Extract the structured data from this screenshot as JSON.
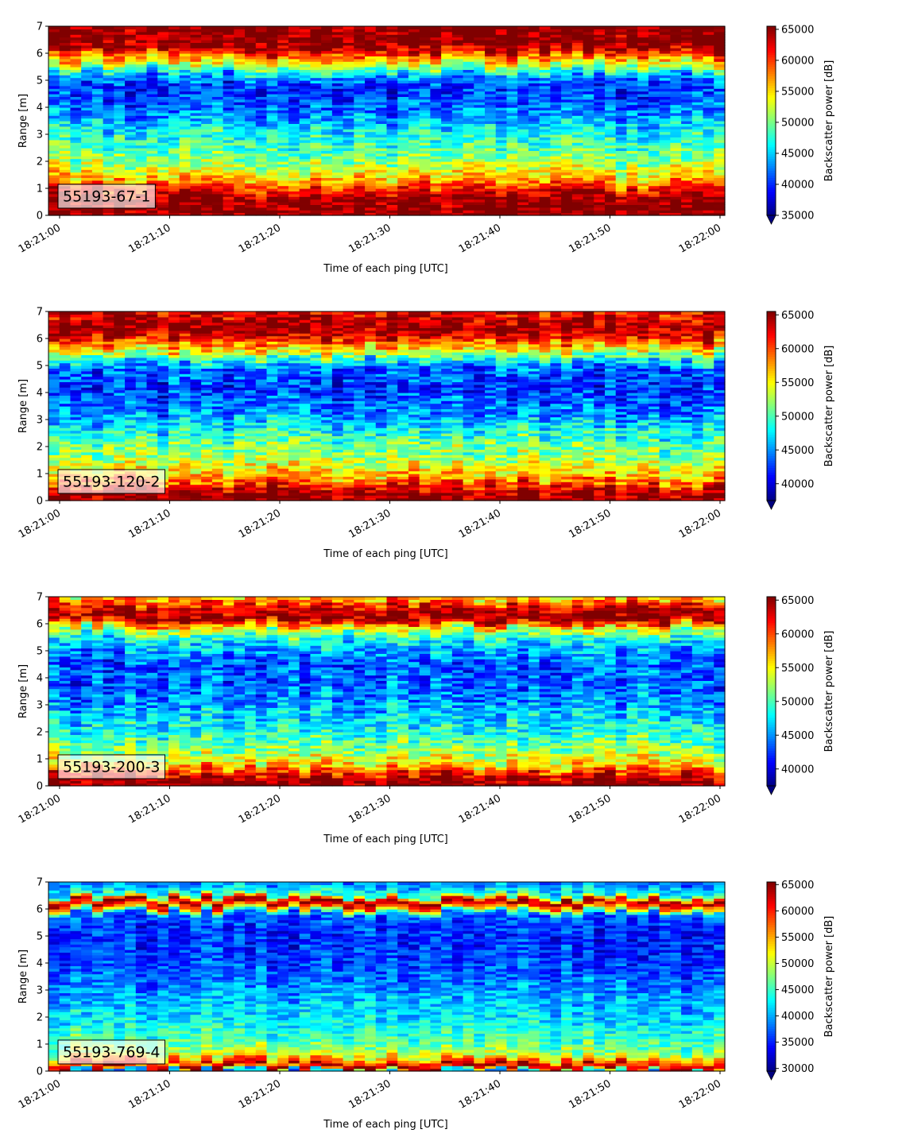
{
  "chart_data": [
    {
      "type": "heatmap",
      "label": "55193-67-1",
      "xlabel": "Time of each ping [UTC]",
      "ylabel": "Range [m]",
      "x_range": [
        "18:21:00",
        "18:22:00"
      ],
      "xticks": [
        "18:21:00",
        "18:21:10",
        "18:21:20",
        "18:21:30",
        "18:21:40",
        "18:21:50",
        "18:22:00"
      ],
      "ylim": [
        0,
        7
      ],
      "yticks": [
        "0",
        "1",
        "2",
        "3",
        "4",
        "5",
        "6",
        "7"
      ],
      "colorbar": {
        "label": "Backscatter power [dB]",
        "colormap": "jet",
        "range": [
          35000,
          65500
        ],
        "ticks": [
          "35000",
          "40000",
          "45000",
          "50000",
          "55000",
          "60000",
          "65000"
        ],
        "extend": "min"
      },
      "profile": [
        {
          "range": 0.0,
          "value": 65000
        },
        {
          "range": 0.25,
          "value": 65500
        },
        {
          "range": 0.7,
          "value": 65000
        },
        {
          "range": 1.0,
          "value": 61000
        },
        {
          "range": 1.4,
          "value": 56000
        },
        {
          "range": 2.0,
          "value": 51000
        },
        {
          "range": 3.0,
          "value": 47000
        },
        {
          "range": 4.0,
          "value": 42000
        },
        {
          "range": 4.8,
          "value": 40000
        },
        {
          "range": 5.2,
          "value": 44000
        },
        {
          "range": 5.6,
          "value": 53000
        },
        {
          "range": 6.0,
          "value": 60000
        },
        {
          "range": 6.3,
          "value": 65500
        },
        {
          "range": 7.0,
          "value": 65500
        }
      ]
    },
    {
      "type": "heatmap",
      "label": "55193-120-2",
      "xlabel": "Time of each ping [UTC]",
      "ylabel": "Range [m]",
      "x_range": [
        "18:21:00",
        "18:22:00"
      ],
      "xticks": [
        "18:21:00",
        "18:21:10",
        "18:21:20",
        "18:21:30",
        "18:21:40",
        "18:21:50",
        "18:22:00"
      ],
      "ylim": [
        0,
        7
      ],
      "yticks": [
        "0",
        "1",
        "2",
        "3",
        "4",
        "5",
        "6",
        "7"
      ],
      "colorbar": {
        "label": "Backscatter power [dB]",
        "colormap": "jet",
        "range": [
          37500,
          65500
        ],
        "ticks": [
          "40000",
          "45000",
          "50000",
          "55000",
          "60000",
          "65000"
        ],
        "extend": "min"
      },
      "profile": [
        {
          "range": 0.0,
          "value": 65000
        },
        {
          "range": 0.2,
          "value": 65500
        },
        {
          "range": 0.5,
          "value": 62000
        },
        {
          "range": 0.9,
          "value": 57000
        },
        {
          "range": 1.5,
          "value": 53000
        },
        {
          "range": 2.3,
          "value": 50000
        },
        {
          "range": 3.2,
          "value": 45000
        },
        {
          "range": 4.2,
          "value": 42000
        },
        {
          "range": 5.0,
          "value": 44000
        },
        {
          "range": 5.5,
          "value": 53000
        },
        {
          "range": 6.0,
          "value": 61000
        },
        {
          "range": 6.4,
          "value": 65500
        },
        {
          "range": 7.0,
          "value": 62000
        }
      ]
    },
    {
      "type": "heatmap",
      "label": "55193-200-3",
      "xlabel": "Time of each ping [UTC]",
      "ylabel": "Range [m]",
      "x_range": [
        "18:21:00",
        "18:22:00"
      ],
      "xticks": [
        "18:21:00",
        "18:21:10",
        "18:21:20",
        "18:21:30",
        "18:21:40",
        "18:21:50",
        "18:22:00"
      ],
      "ylim": [
        0,
        7
      ],
      "yticks": [
        "0",
        "1",
        "2",
        "3",
        "4",
        "5",
        "6",
        "7"
      ],
      "colorbar": {
        "label": "Backscatter power [dB]",
        "colormap": "jet",
        "range": [
          37500,
          65500
        ],
        "ticks": [
          "40000",
          "45000",
          "50000",
          "55000",
          "60000",
          "65000"
        ],
        "extend": "min"
      },
      "profile": [
        {
          "range": 0.0,
          "value": 65000
        },
        {
          "range": 0.2,
          "value": 65500
        },
        {
          "range": 0.45,
          "value": 62000
        },
        {
          "range": 0.8,
          "value": 56000
        },
        {
          "range": 1.5,
          "value": 51000
        },
        {
          "range": 2.5,
          "value": 47000
        },
        {
          "range": 3.5,
          "value": 44000
        },
        {
          "range": 4.5,
          "value": 43500
        },
        {
          "range": 5.3,
          "value": 47000
        },
        {
          "range": 5.8,
          "value": 53000
        },
        {
          "range": 6.2,
          "value": 65500
        },
        {
          "range": 6.6,
          "value": 63000
        },
        {
          "range": 7.0,
          "value": 56000
        }
      ]
    },
    {
      "type": "heatmap",
      "label": "55193-769-4",
      "xlabel": "Time of each ping [UTC]",
      "ylabel": "Range [m]",
      "x_range": [
        "18:21:00",
        "18:22:00"
      ],
      "xticks": [
        "18:21:00",
        "18:21:10",
        "18:21:20",
        "18:21:30",
        "18:21:40",
        "18:21:50",
        "18:22:00"
      ],
      "ylim": [
        0,
        7
      ],
      "yticks": [
        "0",
        "1",
        "2",
        "3",
        "4",
        "5",
        "6",
        "7"
      ],
      "colorbar": {
        "label": "Backscatter power [dB]",
        "colormap": "jet",
        "range": [
          29500,
          65500
        ],
        "ticks": [
          "30000",
          "35000",
          "40000",
          "45000",
          "50000",
          "55000",
          "60000",
          "65000"
        ],
        "extend": "min"
      },
      "profile": [
        {
          "range": 0.0,
          "value": 40000
        },
        {
          "range": 0.15,
          "value": 65500
        },
        {
          "range": 0.35,
          "value": 58000
        },
        {
          "range": 0.6,
          "value": 50000
        },
        {
          "range": 1.0,
          "value": 46000
        },
        {
          "range": 2.0,
          "value": 42000
        },
        {
          "range": 3.0,
          "value": 39000
        },
        {
          "range": 4.0,
          "value": 36000
        },
        {
          "range": 5.0,
          "value": 35000
        },
        {
          "range": 5.8,
          "value": 37000
        },
        {
          "range": 6.1,
          "value": 58000
        },
        {
          "range": 6.3,
          "value": 65500
        },
        {
          "range": 6.5,
          "value": 45000
        },
        {
          "range": 7.0,
          "value": 38000
        }
      ]
    }
  ]
}
